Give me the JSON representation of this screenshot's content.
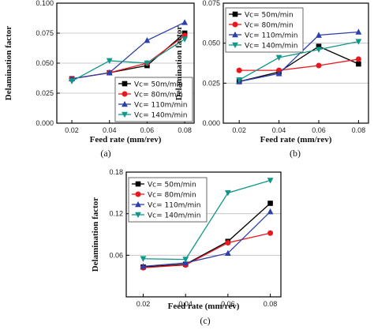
{
  "chart_data": [
    {
      "type": "line",
      "caption": "(a)",
      "xlabel": "Feed rate (mm/rev)",
      "ylabel": "Delamination factor",
      "x": [
        0.02,
        0.04,
        0.06,
        0.08
      ],
      "x_tick_labels": [
        "0.02",
        "0.04",
        "0.06",
        "0.08"
      ],
      "xlim": [
        0.012,
        0.085
      ],
      "ylim": [
        0.0,
        0.1
      ],
      "y_ticks": [
        0.0,
        0.025,
        0.05,
        0.075,
        0.1
      ],
      "y_tick_labels": [
        "0.000",
        "0.025",
        "0.050",
        "0.075",
        "0.100"
      ],
      "grid": "horizontal",
      "legend_position": "lower-right",
      "series": [
        {
          "name": "Vc= 50m/min",
          "values": [
            0.037,
            0.042,
            0.048,
            0.075
          ],
          "color": "#000000",
          "marker": "square"
        },
        {
          "name": "Vc= 80m/min",
          "values": [
            0.037,
            0.042,
            0.05,
            0.073
          ],
          "color": "#e8191e",
          "marker": "circle"
        },
        {
          "name": "Vc= 110m/min",
          "values": [
            0.037,
            0.042,
            0.069,
            0.084
          ],
          "color": "#2d3fa8",
          "marker": "triangle-up"
        },
        {
          "name": "Vc= 140m/min",
          "values": [
            0.035,
            0.052,
            0.05,
            0.07
          ],
          "color": "#11968a",
          "marker": "triangle-down"
        }
      ]
    },
    {
      "type": "line",
      "caption": "(b)",
      "xlabel": "Feed rate (mm/rev)",
      "ylabel": "Delamination factor",
      "x": [
        0.02,
        0.04,
        0.06,
        0.08
      ],
      "x_tick_labels": [
        "0.02",
        "0.04",
        "0.06",
        "0.08"
      ],
      "xlim": [
        0.012,
        0.085
      ],
      "ylim": [
        0.0,
        0.075
      ],
      "y_ticks": [
        0.0,
        0.025,
        0.05,
        0.075
      ],
      "y_tick_labels": [
        "0.000",
        "0.025",
        "0.050",
        "0.075"
      ],
      "grid": "horizontal",
      "legend_position": "top-left",
      "series": [
        {
          "name": "Vc= 50m/min",
          "values": [
            0.026,
            0.032,
            0.048,
            0.037
          ],
          "color": "#000000",
          "marker": "square"
        },
        {
          "name": "Vc= 80m/min",
          "values": [
            0.033,
            0.033,
            0.036,
            0.04
          ],
          "color": "#e8191e",
          "marker": "circle"
        },
        {
          "name": "Vc= 110m/min",
          "values": [
            0.026,
            0.031,
            0.055,
            0.057
          ],
          "color": "#2d3fa8",
          "marker": "triangle-up"
        },
        {
          "name": "Vc= 140m/min",
          "values": [
            0.027,
            0.041,
            0.046,
            0.051
          ],
          "color": "#11968a",
          "marker": "triangle-down"
        }
      ]
    },
    {
      "type": "line",
      "caption": "(c)",
      "xlabel": "Feed rate (mm/rev)",
      "ylabel": "Delamination factor",
      "x": [
        0.02,
        0.04,
        0.06,
        0.08
      ],
      "x_tick_labels": [
        "0.02",
        "0.04",
        "0.06",
        "0.08"
      ],
      "xlim": [
        0.012,
        0.085
      ],
      "ylim": [
        0.0,
        0.18
      ],
      "y_ticks": [
        0.06,
        0.12,
        0.18
      ],
      "y_tick_labels": [
        "0.06",
        "0.12",
        "0.18"
      ],
      "grid": "horizontal",
      "legend_position": "top-left",
      "series": [
        {
          "name": "Vc= 50m/min",
          "values": [
            0.043,
            0.047,
            0.08,
            0.135
          ],
          "color": "#000000",
          "marker": "square"
        },
        {
          "name": "Vc= 80m/min",
          "values": [
            0.042,
            0.046,
            0.078,
            0.092
          ],
          "color": "#e8191e",
          "marker": "circle"
        },
        {
          "name": "Vc= 110m/min",
          "values": [
            0.044,
            0.049,
            0.063,
            0.123
          ],
          "color": "#2d3fa8",
          "marker": "triangle-up"
        },
        {
          "name": "Vc= 140m/min",
          "values": [
            0.055,
            0.054,
            0.15,
            0.168
          ],
          "color": "#11968a",
          "marker": "triangle-down"
        }
      ]
    }
  ]
}
